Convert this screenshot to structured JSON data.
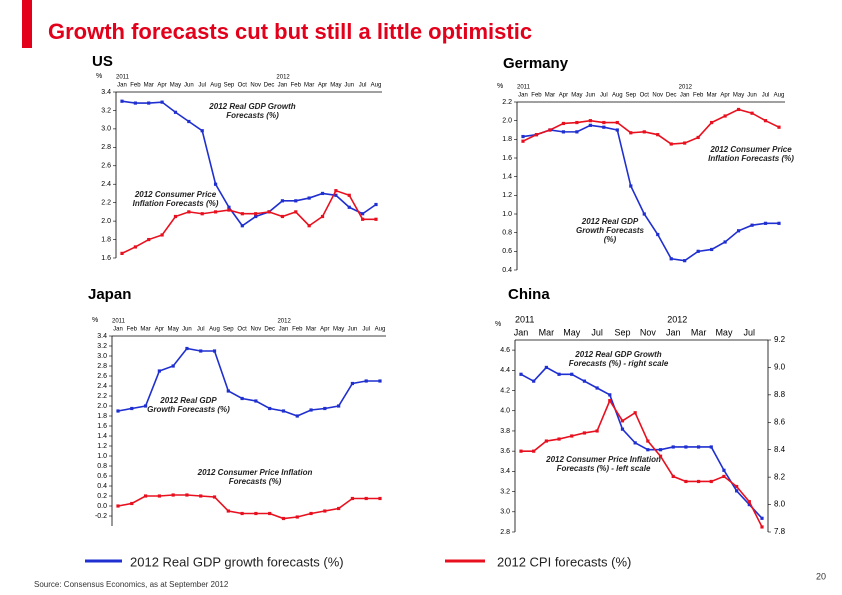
{
  "slide": {
    "title": "Growth forecasts cut but still a little optimistic",
    "legend": [
      "2012 Real GDP growth forecasts (%)",
      "2012 CPI forecasts (%)"
    ],
    "source": "Source: Consensus Economics, as at  September 2012",
    "page": "20"
  },
  "chart_data": [
    {
      "type": "line",
      "title": "US",
      "ylabel": "%",
      "years": [
        "2011",
        "2012"
      ],
      "categories": [
        "Jan",
        "Feb",
        "Mar",
        "Apr",
        "May",
        "Jun",
        "Jul",
        "Aug",
        "Sep",
        "Oct",
        "Nov",
        "Dec",
        "Jan",
        "Feb",
        "Mar",
        "Apr",
        "May",
        "Jun",
        "Jul",
        "Aug"
      ],
      "ylim": [
        1.6,
        3.4
      ],
      "yticks": [
        1.6,
        1.8,
        {
          "value": 2,
          "label": "2.0"
        },
        2.2,
        2.4,
        2.6,
        2.8,
        {
          "value": 3,
          "label": "3.0"
        },
        3.2,
        3.4
      ],
      "series": [
        {
          "name": "2012 Real GDP Growth Forecasts (%)",
          "color": "#1f2fd0",
          "values": [
            3.3,
            3.28,
            3.28,
            3.29,
            3.18,
            3.08,
            2.98,
            2.4,
            2.15,
            1.95,
            2.05,
            2.1,
            2.22,
            2.22,
            2.25,
            2.3,
            2.28,
            2.15,
            2.08,
            2.18
          ]
        },
        {
          "name": "2012 Consumer Price Inflation Forecasts (%)",
          "color": "#e8101e",
          "values": [
            1.65,
            1.72,
            1.8,
            1.85,
            2.05,
            2.1,
            2.08,
            2.1,
            2.12,
            2.08,
            2.08,
            2.1,
            2.05,
            2.1,
            1.95,
            2.05,
            2.33,
            2.28,
            2.02,
            2.02
          ]
        }
      ]
    },
    {
      "type": "line",
      "title": "Germany",
      "ylabel": "%",
      "years": [
        "2011",
        "2012"
      ],
      "categories": [
        "Jan",
        "Feb",
        "Mar",
        "Apr",
        "May",
        "Jun",
        "Jul",
        "Aug",
        "Sep",
        "Oct",
        "Nov",
        "Dec",
        "Jan",
        "Feb",
        "Mar",
        "Apr",
        "May",
        "Jun",
        "Jul",
        "Aug"
      ],
      "ylim": [
        0.4,
        2.2
      ],
      "yticks": [
        0.4,
        0.6,
        0.8,
        {
          "value": 1,
          "label": "1.0"
        },
        1.2,
        1.4,
        1.6,
        1.8,
        {
          "value": 2,
          "label": "2.0"
        },
        2.2
      ],
      "series": [
        {
          "name": "2012 Real GDP Growth Forecasts (%)",
          "color": "#1f2fd0",
          "values": [
            1.83,
            1.85,
            1.9,
            1.88,
            1.88,
            1.95,
            1.93,
            1.9,
            1.3,
            1.0,
            0.78,
            0.52,
            0.5,
            0.6,
            0.62,
            0.7,
            0.82,
            0.88,
            0.9,
            0.9
          ]
        },
        {
          "name": "2012 Consumer Price Inflation Forecasts (%)",
          "color": "#e8101e",
          "values": [
            1.78,
            1.85,
            1.9,
            1.97,
            1.98,
            2.0,
            1.98,
            1.98,
            1.87,
            1.88,
            1.85,
            1.75,
            1.76,
            1.82,
            1.98,
            2.05,
            2.12,
            2.08,
            2.0,
            1.93
          ]
        }
      ]
    },
    {
      "type": "line",
      "title": "Japan",
      "ylabel": "%",
      "years": [
        "2011",
        "2012"
      ],
      "categories": [
        "Jan",
        "Feb",
        "Mar",
        "Apr",
        "May",
        "Jun",
        "Jul",
        "Aug",
        "Sep",
        "Oct",
        "Nov",
        "Dec",
        "Jan",
        "Feb",
        "Mar",
        "Apr",
        "May",
        "Jun",
        "Jul",
        "Aug"
      ],
      "ylim": [
        -0.4,
        3.4
      ],
      "yticks": [
        -0.2,
        {
          "value": 0,
          "label": "0.0"
        },
        0.2,
        0.4,
        0.6,
        0.8,
        {
          "value": 1,
          "label": "1.0"
        },
        1.2,
        1.4,
        1.6,
        1.8,
        {
          "value": 2,
          "label": "2.0"
        },
        2.2,
        2.4,
        2.6,
        2.8,
        {
          "value": 3,
          "label": "3.0"
        },
        3.2,
        3.4
      ],
      "series": [
        {
          "name": "2012 Real GDP Growth Forecasts (%)",
          "color": "#1f2fd0",
          "values": [
            1.9,
            1.95,
            2.0,
            2.7,
            2.8,
            3.15,
            3.1,
            3.1,
            2.3,
            2.15,
            2.1,
            1.95,
            1.9,
            1.8,
            1.92,
            1.95,
            2.0,
            2.45,
            2.5,
            2.5
          ]
        },
        {
          "name": "2012 Consumer Price Inflation Forecasts (%)",
          "color": "#e8101e",
          "values": [
            0.0,
            0.05,
            0.2,
            0.2,
            0.22,
            0.22,
            0.2,
            0.18,
            -0.1,
            -0.15,
            -0.15,
            -0.15,
            -0.25,
            -0.22,
            -0.15,
            -0.1,
            -0.05,
            0.15,
            0.15,
            0.15
          ]
        }
      ]
    },
    {
      "type": "line",
      "title": "China",
      "ylabel": "%",
      "years": [
        "2011",
        "2012"
      ],
      "categories": [
        "Jan",
        null,
        "Mar",
        null,
        "May",
        null,
        "Jul",
        null,
        "Sep",
        null,
        "Nov",
        null,
        "Jan",
        null,
        "Mar",
        null,
        "May",
        null,
        "Jul",
        null
      ],
      "ylim": [
        2.8,
        4.7
      ],
      "yticks": [
        2.8,
        {
          "value": 3,
          "label": "3.0"
        },
        3.2,
        3.4,
        3.6,
        3.8,
        {
          "value": 4,
          "label": "4.0"
        },
        4.2,
        4.4,
        4.6
      ],
      "y2lim": [
        7.8,
        9.2
      ],
      "y2ticks": [
        7.8,
        {
          "value": 8,
          "label": "8.0"
        },
        8.2,
        8.4,
        8.6,
        8.8,
        {
          "value": 9,
          "label": "9.0"
        },
        9.2
      ],
      "series": [
        {
          "name": "2012 Real GDP Growth Forecasts (%) - right scale",
          "color": "#1f2fd0",
          "axis": "y2",
          "values": [
            8.95,
            8.9,
            9.0,
            8.95,
            8.95,
            8.9,
            8.85,
            8.8,
            8.55,
            8.45,
            8.4,
            8.4,
            8.42,
            8.42,
            8.42,
            8.42,
            8.25,
            8.1,
            8.0,
            7.9
          ]
        },
        {
          "name": "2012 Consumer Price Inflation Forecasts (%) - left scale",
          "color": "#e8101e",
          "values": [
            3.6,
            3.6,
            3.7,
            3.72,
            3.75,
            3.78,
            3.8,
            4.1,
            3.9,
            3.98,
            3.7,
            3.55,
            3.35,
            3.3,
            3.3,
            3.3,
            3.35,
            3.25,
            3.1,
            2.85
          ]
        }
      ]
    }
  ]
}
